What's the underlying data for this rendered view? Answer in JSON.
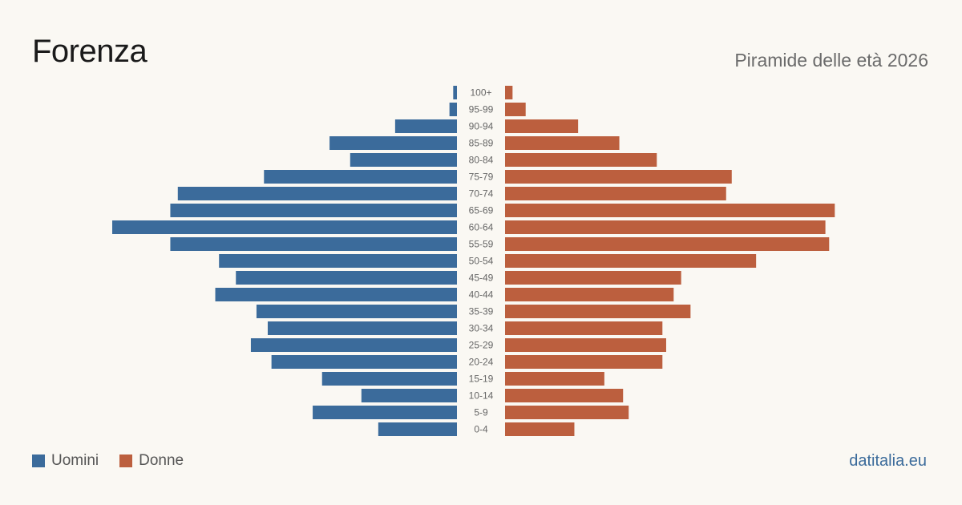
{
  "header": {
    "title": "Forenza",
    "subtitle": "Piramide delle età 2026"
  },
  "footer": {
    "source": "datitalia.eu"
  },
  "colors": {
    "men": "#3b6b9b",
    "women": "#bc5f3e",
    "label": "#666666",
    "source": "#3b6b9b"
  },
  "chart_data": {
    "type": "bar",
    "orientation": "horizontal-population-pyramid",
    "categories": [
      "100+",
      "95-99",
      "90-94",
      "85-89",
      "80-84",
      "75-79",
      "70-74",
      "65-69",
      "60-64",
      "55-59",
      "50-54",
      "45-49",
      "40-44",
      "35-39",
      "30-34",
      "25-29",
      "20-24",
      "15-19",
      "10-14",
      "5-9",
      "0-4"
    ],
    "series": [
      {
        "name": "Uomini",
        "values": [
          2,
          4,
          33,
          68,
          57,
          103,
          149,
          153,
          184,
          153,
          127,
          118,
          129,
          107,
          101,
          110,
          99,
          72,
          51,
          77,
          42
        ]
      },
      {
        "name": "Donne",
        "values": [
          4,
          11,
          39,
          61,
          81,
          121,
          118,
          176,
          171,
          173,
          134,
          94,
          90,
          99,
          84,
          86,
          84,
          53,
          63,
          66,
          37
        ]
      }
    ],
    "xlim": [
      0,
      184
    ],
    "legend": "bottom-left"
  }
}
